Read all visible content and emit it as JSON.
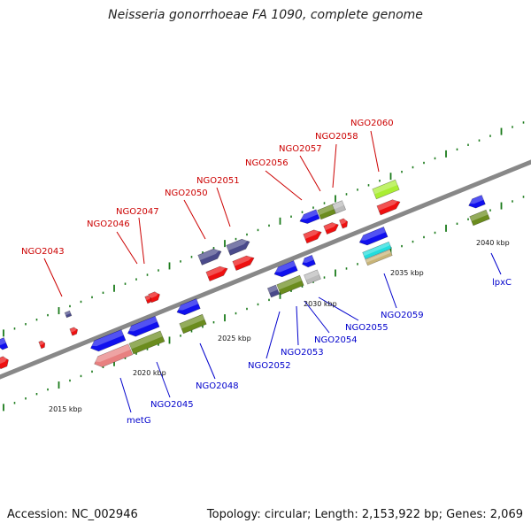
{
  "title": "Neisseria gonorrhoeae FA 1090, complete genome",
  "footer": {
    "accession": "Accession: NC_002946",
    "stats": "Topology: circular; Length: 2,153,922 bp; Genes: 2,069"
  },
  "scale_labels": [
    "2015 kbp",
    "2020 kbp",
    "2025 kbp",
    "2030 kbp",
    "2035 kbp",
    "2040 kbp"
  ],
  "top_labels": [
    "NGO2043",
    "NGO2046",
    "NGO2047",
    "NGO2050",
    "NGO2051",
    "NGO2056",
    "NGO2057",
    "NGO2058",
    "NGO2060"
  ],
  "bottom_labels": [
    "metG",
    "NGO2045",
    "NGO2048",
    "NGO2052",
    "NGO2053",
    "NGO2054",
    "NGO2055",
    "NGO2059",
    "lpxC"
  ],
  "colors": {
    "label_top": "#cc0000",
    "label_bottom": "#0000cc",
    "backbone": "#8c8c8c",
    "tick": "#1a7a1a",
    "gene_blue": "#1010ee",
    "gene_red": "#ee1010",
    "gene_olive": "#6b8c1e",
    "gene_slate": "#4a4a8a",
    "gene_pink": "#e88080",
    "gene_lime": "#aaee33",
    "gene_gray": "#bbbbbb",
    "gene_cyan": "#22dddd",
    "gene_tan": "#c8b478"
  }
}
